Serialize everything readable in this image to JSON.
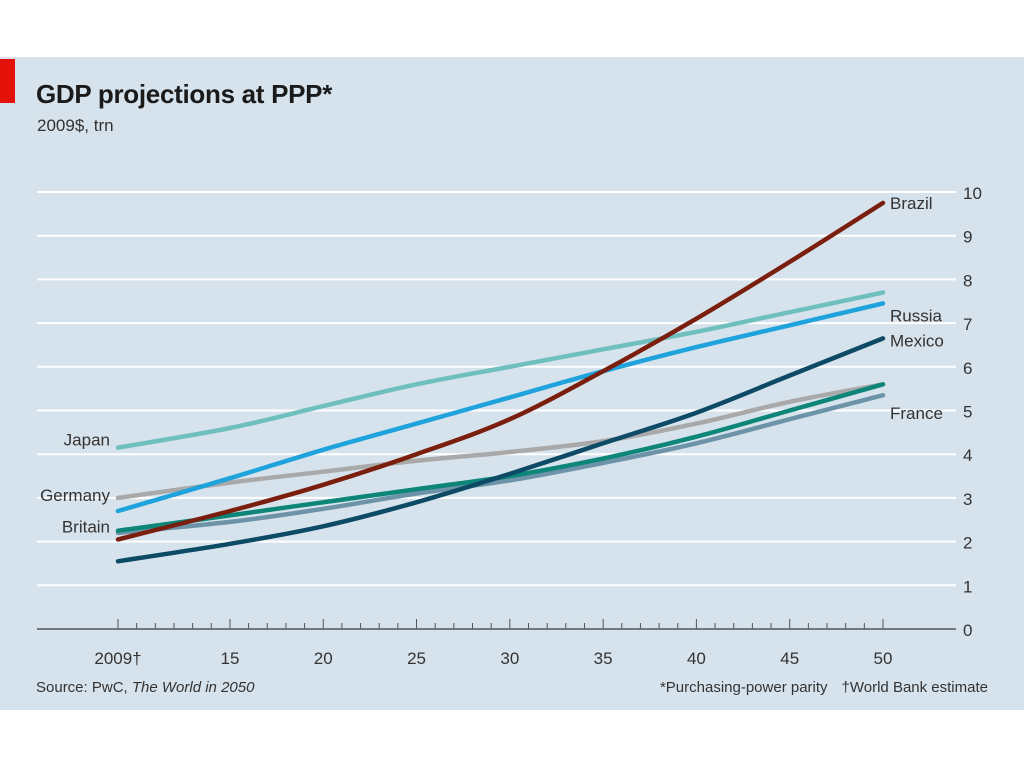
{
  "header": {
    "title": "GDP projections at PPP*",
    "subtitle": "2009$, trn"
  },
  "footer": {
    "source_prefix": "Source: PwC, ",
    "source_title": "The World in 2050",
    "note_ppp": "*Purchasing-power parity",
    "note_estimate": "†World Bank estimate"
  },
  "colors": {
    "background": "#d7e3ec",
    "accent": "#e3120b",
    "brazil": "#7a1e0e",
    "russia": "#1fa3dc",
    "japan": "#6fbfbf",
    "mexico": "#0c4a66",
    "germany": "#a9a9a9",
    "britain": "#0d8578",
    "france": "#6d93a9"
  },
  "chart_data": {
    "type": "line",
    "title": "GDP projections at PPP*",
    "subtitle": "2009$, trn",
    "x_tick_labels": [
      "2009†",
      "15",
      "20",
      "25",
      "30",
      "35",
      "40",
      "45",
      "50"
    ],
    "x_tick_values": [
      2009,
      2015,
      2020,
      2025,
      2030,
      2035,
      2040,
      2045,
      2050
    ],
    "xlim": [
      2009,
      2050
    ],
    "ylim": [
      0,
      10
    ],
    "y_ticks": [
      0,
      1,
      2,
      3,
      4,
      5,
      6,
      7,
      8,
      9,
      10
    ],
    "y_axis_side": "right",
    "grid": true,
    "x": [
      2009,
      2015,
      2020,
      2025,
      2030,
      2035,
      2040,
      2045,
      2050
    ],
    "series": [
      {
        "name": "Brazil",
        "color_key": "brazil",
        "values": [
          2.05,
          2.7,
          3.3,
          4.0,
          4.8,
          5.9,
          7.1,
          8.4,
          9.75
        ]
      },
      {
        "name": "Russia",
        "color_key": "russia",
        "values": [
          2.7,
          3.45,
          4.1,
          4.7,
          5.3,
          5.9,
          6.45,
          6.95,
          7.45
        ]
      },
      {
        "name": "Japan",
        "color_key": "japan",
        "values": [
          4.15,
          4.6,
          5.1,
          5.6,
          6.0,
          6.4,
          6.8,
          7.25,
          7.7
        ]
      },
      {
        "name": "Mexico",
        "color_key": "mexico",
        "values": [
          1.55,
          1.95,
          2.35,
          2.9,
          3.55,
          4.25,
          4.95,
          5.8,
          6.65
        ]
      },
      {
        "name": "Germany",
        "color_key": "germany",
        "values": [
          3.0,
          3.35,
          3.6,
          3.85,
          4.05,
          4.3,
          4.7,
          5.2,
          5.6
        ]
      },
      {
        "name": "Britain",
        "color_key": "britain",
        "values": [
          2.25,
          2.6,
          2.9,
          3.2,
          3.5,
          3.9,
          4.4,
          5.0,
          5.6
        ]
      },
      {
        "name": "France",
        "color_key": "france",
        "values": [
          2.2,
          2.45,
          2.75,
          3.1,
          3.4,
          3.8,
          4.25,
          4.8,
          5.35
        ]
      }
    ]
  }
}
